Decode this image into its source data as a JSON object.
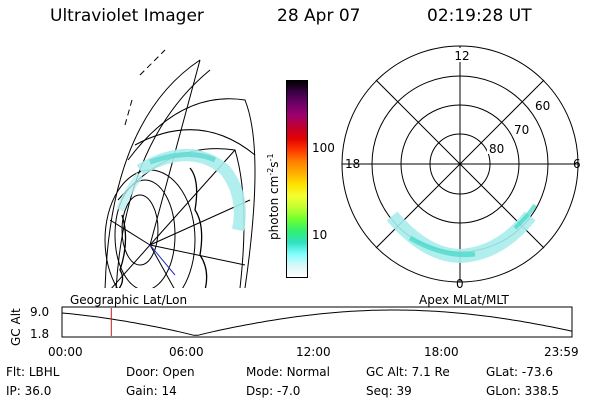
{
  "header": {
    "title": "Ultraviolet Imager",
    "date": "28 Apr 07",
    "time": "02:19:28 UT"
  },
  "colorbar": {
    "label": "photon cm",
    "label_exp1": "-2",
    "label_s": "s",
    "label_exp2": "-1",
    "ticks": [
      "100",
      "10"
    ],
    "colors": [
      "#000000",
      "#3c0048",
      "#700068",
      "#9e006e",
      "#c00030",
      "#e30000",
      "#ff3800",
      "#ff8000",
      "#ffb000",
      "#ffe200",
      "#f4ff30",
      "#c0ff30",
      "#70ff30",
      "#30f070",
      "#30e0c0",
      "#80ffff",
      "#d8f8f8",
      "#ffffff"
    ]
  },
  "polar_labels": {
    "top": "12",
    "left": "18",
    "right": "6",
    "bottom": "0",
    "lat60": "60",
    "lat70": "70",
    "lat80": "80"
  },
  "timeline": {
    "left_label": "Geographic Lat/Lon",
    "right_label": "Apex MLat/MLT",
    "axis_name": "GC Alt",
    "y_top": "9.0",
    "y_bottom": "1.8",
    "x_ticks": [
      "00:00",
      "06:00",
      "12:00",
      "18:00",
      "23:59"
    ],
    "current_time_hours": 2.32
  },
  "info": {
    "row1": [
      {
        "key": "Flt:",
        "val": "LBHL"
      },
      {
        "key": "Door:",
        "val": "Open"
      },
      {
        "key": "Mode:",
        "val": "Normal"
      },
      {
        "key": "GC Alt:",
        "val": "7.1 Re"
      },
      {
        "key": "GLat:",
        "val": "-73.6"
      }
    ],
    "row2": [
      {
        "key": "IP:",
        "val": "36.0"
      },
      {
        "key": "Gain:",
        "val": "14"
      },
      {
        "key": "Dsp:",
        "val": "-7.0"
      },
      {
        "key": "Seq:",
        "val": "39"
      },
      {
        "key": "GLon:",
        "val": "338.5"
      }
    ]
  }
}
